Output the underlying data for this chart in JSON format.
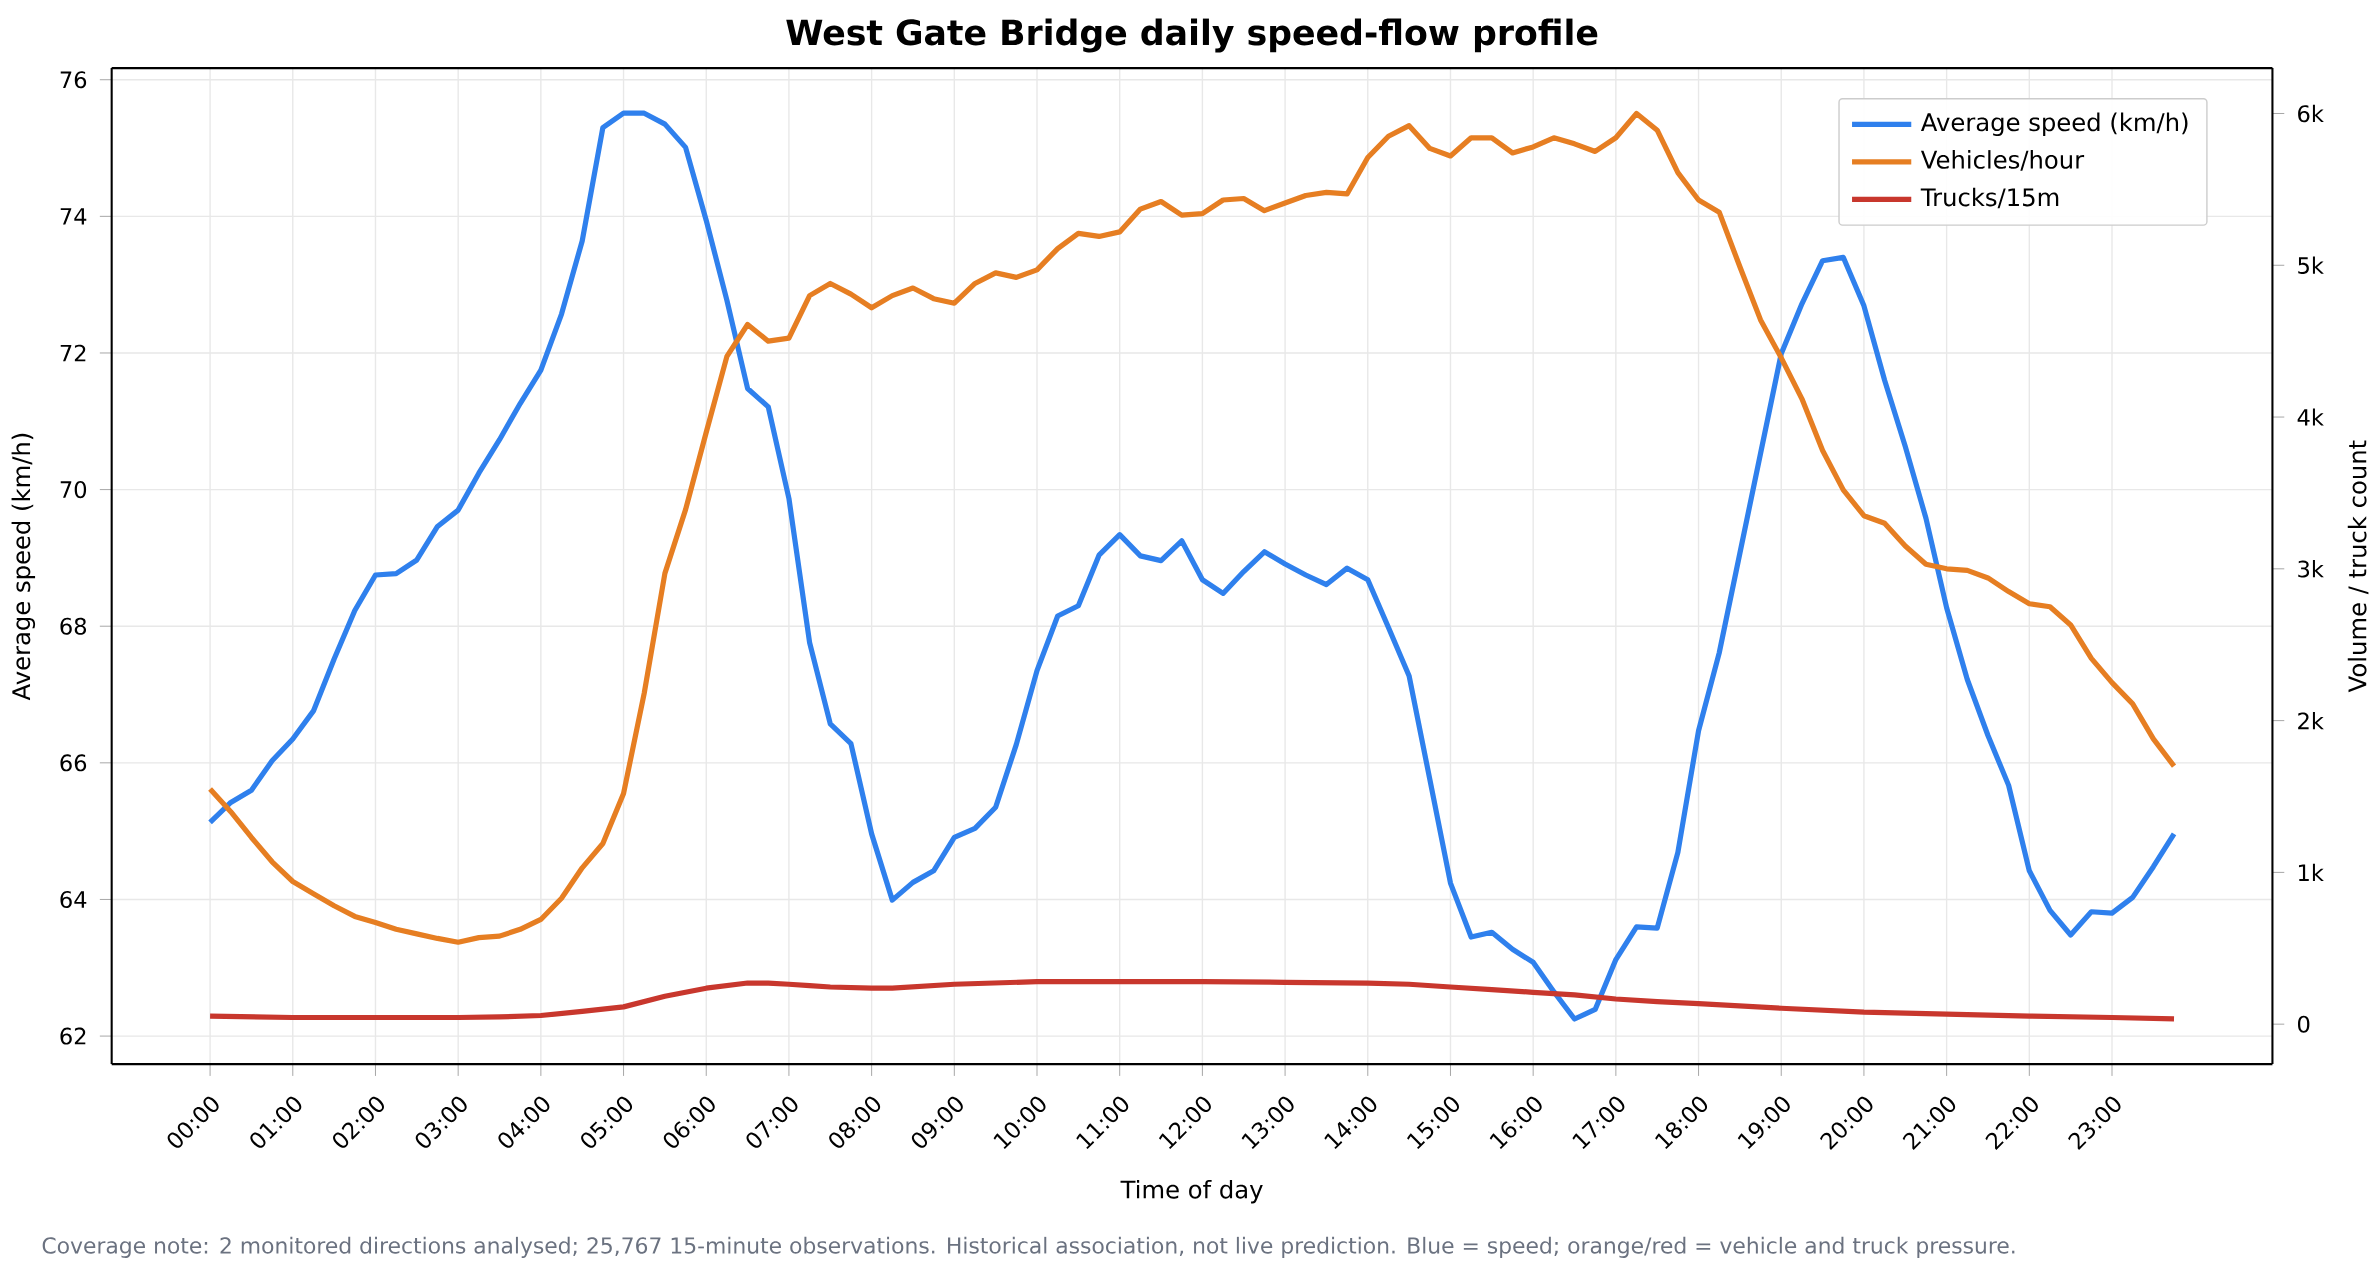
{
  "chart_data": {
    "type": "line",
    "title": "West Gate Bridge daily speed-flow profile",
    "xlabel": "Time of day",
    "ylabel": "Average speed (km/h)",
    "y2label": "Volume / truck count",
    "annotations": [
      "Coverage note: 2 monitored directions analysed; 25,767 15-minute observations. Historical association, not live prediction. Blue = speed; orange/red = vehicle and truck pressure."
    ],
    "x": [
      0,
      0.25,
      0.5,
      0.75,
      1,
      1.25,
      1.5,
      1.75,
      2,
      2.25,
      2.5,
      2.75,
      3,
      3.25,
      3.5,
      3.75,
      4,
      4.25,
      4.5,
      4.75,
      5,
      5.25,
      5.5,
      5.75,
      6,
      6.25,
      6.5,
      6.75,
      7,
      7.25,
      7.5,
      7.75,
      8,
      8.25,
      8.5,
      8.75,
      9,
      9.25,
      9.5,
      9.75,
      10,
      10.25,
      10.5,
      10.75,
      11,
      11.25,
      11.5,
      11.75,
      12,
      12.25,
      12.5,
      12.75,
      13,
      13.25,
      13.5,
      13.75,
      14,
      14.25,
      14.5,
      14.75,
      15,
      15.25,
      15.5,
      15.75,
      16,
      16.25,
      16.5,
      16.75,
      17,
      17.25,
      17.5,
      17.75,
      18,
      18.25,
      18.5,
      18.75,
      19,
      19.25,
      19.5,
      19.75,
      20,
      20.25,
      20.5,
      20.75,
      21,
      21.25,
      21.5,
      21.75,
      22,
      22.25,
      22.5,
      22.75,
      23,
      23.25,
      23.5,
      23.75
    ],
    "xlim": [
      -1.19,
      24.94
    ],
    "xticks": [
      {
        "value": 0,
        "label": "00:00"
      },
      {
        "value": 1,
        "label": "01:00"
      },
      {
        "value": 2,
        "label": "02:00"
      },
      {
        "value": 3,
        "label": "03:00"
      },
      {
        "value": 4,
        "label": "04:00"
      },
      {
        "value": 5,
        "label": "05:00"
      },
      {
        "value": 6,
        "label": "06:00"
      },
      {
        "value": 7,
        "label": "07:00"
      },
      {
        "value": 8,
        "label": "08:00"
      },
      {
        "value": 9,
        "label": "09:00"
      },
      {
        "value": 10,
        "label": "10:00"
      },
      {
        "value": 11,
        "label": "11:00"
      },
      {
        "value": 12,
        "label": "12:00"
      },
      {
        "value": 13,
        "label": "13:00"
      },
      {
        "value": 14,
        "label": "14:00"
      },
      {
        "value": 15,
        "label": "15:00"
      },
      {
        "value": 16,
        "label": "16:00"
      },
      {
        "value": 17,
        "label": "17:00"
      },
      {
        "value": 18,
        "label": "18:00"
      },
      {
        "value": 19,
        "label": "19:00"
      },
      {
        "value": 20,
        "label": "20:00"
      },
      {
        "value": 21,
        "label": "21:00"
      },
      {
        "value": 22,
        "label": "22:00"
      },
      {
        "value": 23,
        "label": "23:00"
      }
    ],
    "ylim": [
      61.59,
      76.17
    ],
    "yticks": [
      62,
      64,
      66,
      68,
      70,
      72,
      74,
      76
    ],
    "y2lim": [
      -263,
      6299
    ],
    "y2ticks": [
      {
        "value": 0,
        "label": "0"
      },
      {
        "value": 1000,
        "label": "1k"
      },
      {
        "value": 2000,
        "label": "2k"
      },
      {
        "value": 3000,
        "label": "3k"
      },
      {
        "value": 4000,
        "label": "4k"
      },
      {
        "value": 5000,
        "label": "5k"
      },
      {
        "value": 6000,
        "label": "6k"
      }
    ],
    "grid": true,
    "legend": "top right",
    "series": [
      {
        "name": "Average speed (km/h)",
        "color": "#2f80ed",
        "values": [
          65.13,
          65.42,
          65.6,
          66.03,
          66.35,
          66.76,
          67.52,
          68.23,
          68.75,
          68.77,
          68.97,
          69.46,
          69.7,
          70.24,
          70.73,
          71.26,
          71.75,
          72.57,
          73.64,
          75.3,
          75.51,
          75.51,
          75.35,
          75.01,
          73.94,
          72.77,
          71.48,
          71.21,
          69.87,
          67.76,
          66.57,
          66.28,
          64.96,
          63.99,
          64.25,
          64.42,
          64.91,
          65.04,
          65.35,
          66.27,
          67.35,
          68.15,
          68.3,
          69.04,
          69.34,
          69.03,
          68.96,
          69.25,
          68.68,
          68.48,
          68.8,
          69.09,
          68.91,
          68.75,
          68.61,
          68.85,
          68.68,
          67.98,
          67.27,
          65.76,
          64.24,
          63.45,
          63.52,
          63.27,
          63.08,
          62.65,
          62.25,
          62.39,
          63.12,
          63.6,
          63.58,
          64.69,
          66.47,
          67.61,
          69.07,
          70.53,
          71.99,
          72.72,
          73.35,
          73.4,
          72.69,
          71.6,
          70.63,
          69.58,
          68.27,
          67.22,
          66.4,
          65.67,
          64.42,
          63.84,
          63.48,
          63.82,
          63.8,
          64.03,
          64.48,
          64.96
        ]
      },
      {
        "name": "Vehicles/hour",
        "color": "#e67e22",
        "axis": "y2",
        "values": [
          1550,
          1400,
          1230,
          1070,
          940,
          860,
          780,
          710,
          670,
          625,
          595,
          565,
          540,
          570,
          580,
          625,
          690,
          830,
          1030,
          1190,
          1520,
          2180,
          2970,
          3390,
          3900,
          4400,
          4610,
          4500,
          4520,
          4800,
          4880,
          4810,
          4720,
          4800,
          4850,
          4780,
          4750,
          4880,
          4950,
          4920,
          4970,
          5110,
          5210,
          5190,
          5220,
          5370,
          5420,
          5330,
          5340,
          5430,
          5440,
          5360,
          5410,
          5460,
          5480,
          5470,
          5710,
          5850,
          5920,
          5770,
          5720,
          5840,
          5840,
          5740,
          5780,
          5840,
          5800,
          5750,
          5840,
          6000,
          5890,
          5610,
          5430,
          5350,
          4990,
          4640,
          4390,
          4120,
          3780,
          3520,
          3350,
          3300,
          3150,
          3030,
          3000,
          2990,
          2940,
          2850,
          2770,
          2750,
          2630,
          2410,
          2250,
          2110,
          1880,
          1700
        ]
      },
      {
        "name": "Trucks/15m",
        "color": "#c8372d",
        "axis": "y2",
        "x": [
          0,
          1,
          2,
          3,
          3.5,
          4,
          4.5,
          5,
          5.5,
          6,
          6.5,
          6.75,
          7,
          7.25,
          7.5,
          8,
          8.25,
          9,
          10,
          11,
          12,
          13,
          14,
          14.5,
          15,
          15.5,
          16,
          16.5,
          17,
          17.5,
          18,
          19,
          20,
          21,
          22,
          23,
          23.75
        ],
        "values": [
          53,
          44,
          44,
          44,
          48,
          57,
          84,
          114,
          184,
          237,
          271,
          271,
          263,
          254,
          245,
          237,
          237,
          263,
          280,
          280,
          280,
          276,
          271,
          263,
          245,
          228,
          210,
          193,
          166,
          149,
          136,
          105,
          79,
          66,
          53,
          44,
          35
        ]
      }
    ]
  }
}
